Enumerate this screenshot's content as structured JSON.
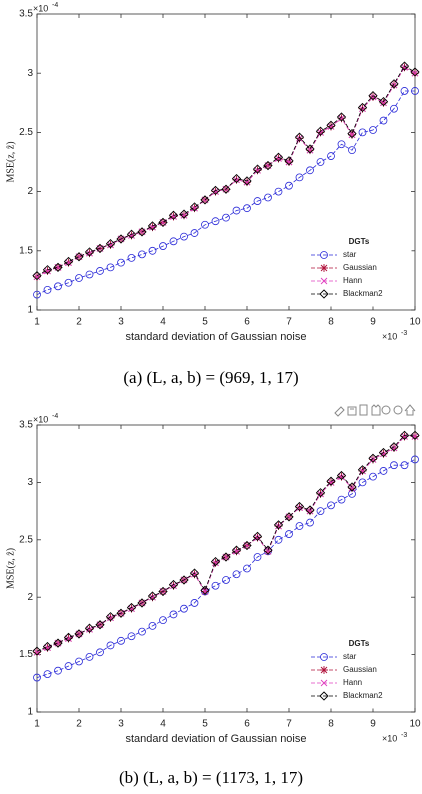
{
  "chart_data": [
    {
      "type": "line",
      "caption": "(a) (L, a, b) = (969, 1, 17)",
      "xlabel": "standard deviation of Gaussian noise",
      "ylabel": "MSE(z, ẑ)",
      "y_multiplier": "×10",
      "y_exponent": "-4",
      "x_multiplier": "×10",
      "x_exponent": "-3",
      "xlim": [
        1,
        10
      ],
      "ylim": [
        1,
        3.5
      ],
      "xticks": [
        1,
        2,
        3,
        4,
        5,
        6,
        7,
        8,
        9,
        10
      ],
      "yticks": [
        1,
        1.5,
        2,
        2.5,
        3,
        3.5
      ],
      "grid": false,
      "linestyle": "dashed",
      "legend_title": "DGTs",
      "legend_loc": "lower right",
      "x": [
        1,
        1.25,
        1.5,
        1.75,
        2,
        2.25,
        2.5,
        2.75,
        3,
        3.25,
        3.5,
        3.75,
        4,
        4.25,
        4.5,
        4.75,
        5,
        5.25,
        5.5,
        5.75,
        6,
        6.25,
        6.5,
        6.75,
        7,
        7.25,
        7.5,
        7.75,
        8,
        8.25,
        8.5,
        8.75,
        9,
        9.25,
        9.5,
        9.75,
        10
      ],
      "series": [
        {
          "name": "star",
          "color": "#2a2ad8",
          "marker": "circle",
          "values": [
            1.13,
            1.17,
            1.2,
            1.23,
            1.27,
            1.3,
            1.33,
            1.36,
            1.4,
            1.44,
            1.47,
            1.5,
            1.54,
            1.58,
            1.62,
            1.65,
            1.72,
            1.75,
            1.78,
            1.84,
            1.86,
            1.92,
            1.95,
            2,
            2.05,
            2.12,
            2.18,
            2.25,
            2.3,
            2.4,
            2.35,
            2.5,
            2.52,
            2.6,
            2.7,
            2.85,
            2.85
          ]
        },
        {
          "name": "Gaussian",
          "color": "#b0103a",
          "marker": "star",
          "values": [
            1.28,
            1.33,
            1.36,
            1.4,
            1.45,
            1.48,
            1.52,
            1.55,
            1.6,
            1.63,
            1.66,
            1.7,
            1.74,
            1.79,
            1.8,
            1.86,
            1.93,
            2,
            2.02,
            2.1,
            2.08,
            2.18,
            2.22,
            2.28,
            2.25,
            2.45,
            2.35,
            2.5,
            2.55,
            2.62,
            2.48,
            2.7,
            2.8,
            2.75,
            2.9,
            3.05,
            3
          ]
        },
        {
          "name": "Hann",
          "color": "#e040c0",
          "marker": "x",
          "values": [
            1.28,
            1.33,
            1.36,
            1.4,
            1.45,
            1.48,
            1.52,
            1.55,
            1.6,
            1.63,
            1.66,
            1.7,
            1.74,
            1.79,
            1.8,
            1.86,
            1.93,
            2,
            2.02,
            2.1,
            2.08,
            2.18,
            2.22,
            2.28,
            2.25,
            2.45,
            2.35,
            2.5,
            2.55,
            2.62,
            2.48,
            2.7,
            2.8,
            2.75,
            2.9,
            3.05,
            3
          ]
        },
        {
          "name": "Blackman2",
          "color": "#000000",
          "marker": "diamond",
          "values": [
            1.29,
            1.34,
            1.36,
            1.41,
            1.45,
            1.49,
            1.52,
            1.56,
            1.6,
            1.64,
            1.66,
            1.71,
            1.74,
            1.8,
            1.81,
            1.87,
            1.93,
            2.01,
            2.02,
            2.11,
            2.09,
            2.19,
            2.22,
            2.29,
            2.26,
            2.46,
            2.36,
            2.51,
            2.56,
            2.63,
            2.49,
            2.71,
            2.81,
            2.76,
            2.91,
            3.06,
            3.01
          ]
        }
      ]
    },
    {
      "type": "line",
      "caption": "(b) (L, a, b) = (1173, 1, 17)",
      "xlabel": "standard deviation of Gaussian noise",
      "ylabel": "MSE(z, ẑ)",
      "y_multiplier": "×10",
      "y_exponent": "-4",
      "x_multiplier": "×10",
      "x_exponent": "-3",
      "xlim": [
        1,
        10
      ],
      "ylim": [
        1,
        3.5
      ],
      "xticks": [
        1,
        2,
        3,
        4,
        5,
        6,
        7,
        8,
        9,
        10
      ],
      "yticks": [
        1,
        1.5,
        2,
        2.5,
        3,
        3.5
      ],
      "grid": false,
      "linestyle": "dashed",
      "legend_title": "DGTs",
      "legend_loc": "lower right",
      "x": [
        1,
        1.25,
        1.5,
        1.75,
        2,
        2.25,
        2.5,
        2.75,
        3,
        3.25,
        3.5,
        3.75,
        4,
        4.25,
        4.5,
        4.75,
        5,
        5.25,
        5.5,
        5.75,
        6,
        6.25,
        6.5,
        6.75,
        7,
        7.25,
        7.5,
        7.75,
        8,
        8.25,
        8.5,
        8.75,
        9,
        9.25,
        9.5,
        9.75,
        10
      ],
      "series": [
        {
          "name": "star",
          "color": "#2a2ad8",
          "marker": "circle",
          "values": [
            1.3,
            1.33,
            1.36,
            1.4,
            1.44,
            1.48,
            1.52,
            1.58,
            1.62,
            1.66,
            1.7,
            1.75,
            1.8,
            1.85,
            1.9,
            1.95,
            2.05,
            2.1,
            2.15,
            2.2,
            2.25,
            2.35,
            2.4,
            2.5,
            2.55,
            2.62,
            2.65,
            2.75,
            2.8,
            2.85,
            2.9,
            3,
            3.05,
            3.1,
            3.15,
            3.15,
            3.2
          ]
        },
        {
          "name": "Gaussian",
          "color": "#b0103a",
          "marker": "star",
          "values": [
            1.52,
            1.56,
            1.6,
            1.64,
            1.68,
            1.72,
            1.76,
            1.82,
            1.86,
            1.9,
            1.95,
            2,
            2.05,
            2.1,
            2.15,
            2.2,
            2.05,
            2.3,
            2.35,
            2.4,
            2.45,
            2.52,
            2.4,
            2.62,
            2.7,
            2.78,
            2.75,
            2.9,
            3,
            3.05,
            2.95,
            3.1,
            3.2,
            3.25,
            3.3,
            3.4,
            3.4
          ]
        },
        {
          "name": "Hann",
          "color": "#e040c0",
          "marker": "x",
          "values": [
            1.52,
            1.56,
            1.6,
            1.64,
            1.68,
            1.72,
            1.76,
            1.82,
            1.86,
            1.9,
            1.95,
            2,
            2.05,
            2.1,
            2.15,
            2.2,
            2.05,
            2.3,
            2.35,
            2.4,
            2.45,
            2.52,
            2.4,
            2.62,
            2.7,
            2.78,
            2.75,
            2.9,
            3,
            3.05,
            2.95,
            3.1,
            3.2,
            3.25,
            3.3,
            3.4,
            3.4
          ]
        },
        {
          "name": "Blackman2",
          "color": "#000000",
          "marker": "diamond",
          "values": [
            1.53,
            1.57,
            1.6,
            1.65,
            1.68,
            1.73,
            1.76,
            1.83,
            1.86,
            1.91,
            1.95,
            2.01,
            2.05,
            2.11,
            2.15,
            2.21,
            2.06,
            2.31,
            2.35,
            2.41,
            2.45,
            2.53,
            2.41,
            2.63,
            2.7,
            2.79,
            2.76,
            2.91,
            3.01,
            3.06,
            2.96,
            3.11,
            3.21,
            3.26,
            3.31,
            3.41,
            3.41
          ]
        }
      ]
    }
  ]
}
